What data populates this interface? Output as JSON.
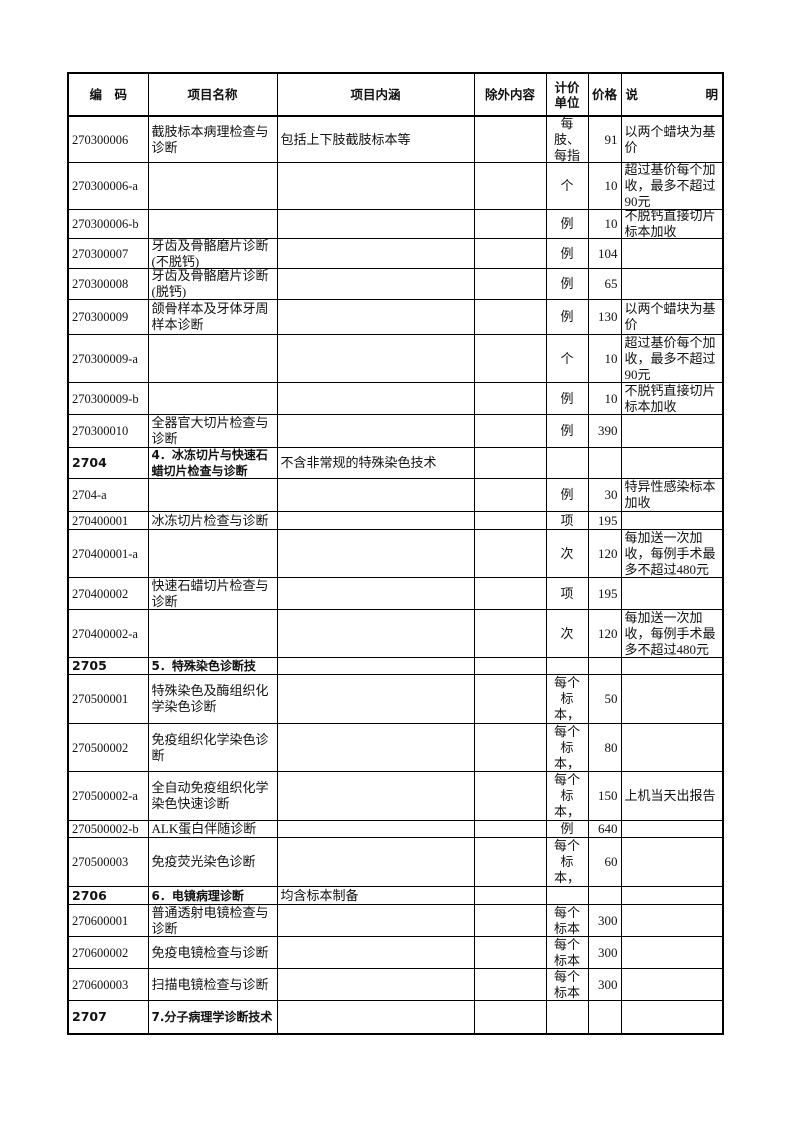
{
  "header": {
    "code": "编　码",
    "name": "项目名称",
    "content": "项目内涵",
    "exclude": "除外内容",
    "unit": "计价单位",
    "price": "价格",
    "note": "说　　明"
  },
  "rows": [
    {
      "code": "270300006",
      "name": "截肢标本病理检查与诊断",
      "content": "包括上下肢截肢标本等",
      "exclude": "",
      "unit": "每肢、每指",
      "price": "91",
      "note": "以两个蜡块为基价",
      "bold": false
    },
    {
      "code": "270300006-a",
      "name": "",
      "content": "",
      "exclude": "",
      "unit": "个",
      "price": "10",
      "note": "超过基价每个加收，最多不超过90元",
      "bold": false
    },
    {
      "code": "270300006-b",
      "name": "",
      "content": "",
      "exclude": "",
      "unit": "例",
      "price": "10",
      "note": "不脱钙直接切片标本加收",
      "bold": false
    },
    {
      "code": "270300007",
      "name": "牙齿及骨骼磨片诊断(不脱钙)",
      "content": "",
      "exclude": "",
      "unit": "例",
      "price": "104",
      "note": "",
      "bold": false
    },
    {
      "code": "270300008",
      "name": "牙齿及骨骼磨片诊断(脱钙)",
      "content": "",
      "exclude": "",
      "unit": "例",
      "price": "65",
      "note": "",
      "bold": false
    },
    {
      "code": "270300009",
      "name": "颌骨样本及牙体牙周样本诊断",
      "content": "",
      "exclude": "",
      "unit": "例",
      "price": "130",
      "note": "以两个蜡块为基价",
      "bold": false
    },
    {
      "code": "270300009-a",
      "name": "",
      "content": "",
      "exclude": "",
      "unit": "个",
      "price": "10",
      "note": "超过基价每个加收，最多不超过90元",
      "bold": false
    },
    {
      "code": "270300009-b",
      "name": "",
      "content": "",
      "exclude": "",
      "unit": "例",
      "price": "10",
      "note": "不脱钙直接切片标本加收",
      "bold": false
    },
    {
      "code": "270300010",
      "name": "全器官大切片检查与诊断",
      "content": "",
      "exclude": "",
      "unit": "例",
      "price": "390",
      "note": "",
      "bold": false
    },
    {
      "code": "2704",
      "name": "4．冰冻切片与快速石蜡切片检查与诊断",
      "content": "不含非常规的特殊染色技术",
      "exclude": "",
      "unit": "",
      "price": "",
      "note": "",
      "bold": true
    },
    {
      "code": "2704-a",
      "name": "",
      "content": "",
      "exclude": "",
      "unit": "例",
      "price": "30",
      "note": "特异性感染标本加收",
      "bold": false
    },
    {
      "code": "270400001",
      "name": "冰冻切片检查与诊断",
      "content": "",
      "exclude": "",
      "unit": "项",
      "price": "195",
      "note": "",
      "bold": false
    },
    {
      "code": "270400001-a",
      "name": "",
      "content": "",
      "exclude": "",
      "unit": "次",
      "price": "120",
      "note": "每加送一次加收，每例手术最多不超过480元",
      "bold": false
    },
    {
      "code": "270400002",
      "name": "快速石蜡切片检查与诊断",
      "content": "",
      "exclude": "",
      "unit": "项",
      "price": "195",
      "note": "",
      "bold": false
    },
    {
      "code": "270400002-a",
      "name": "",
      "content": "",
      "exclude": "",
      "unit": "次",
      "price": "120",
      "note": "每加送一次加收，每例手术最多不超过480元",
      "bold": false
    },
    {
      "code": "2705",
      "name": "5．特殊染色诊断技",
      "content": "",
      "exclude": "",
      "unit": "",
      "price": "",
      "note": "",
      "bold": true
    },
    {
      "code": "270500001",
      "name": "特殊染色及酶组织化学染色诊断",
      "content": "",
      "exclude": "",
      "unit": "每个标本，",
      "price": "50",
      "note": "",
      "bold": false
    },
    {
      "code": "270500002",
      "name": "免疫组织化学染色诊断",
      "content": "",
      "exclude": "",
      "unit": "每个标本，",
      "price": "80",
      "note": "",
      "bold": false
    },
    {
      "code": "270500002-a",
      "name": "全自动免疫组织化学染色快速诊断",
      "content": "",
      "exclude": "",
      "unit": "每个标本，",
      "price": "150",
      "note": "上机当天出报告",
      "bold": false
    },
    {
      "code": "270500002-b",
      "name": "ALK蛋白伴随诊断",
      "content": "",
      "exclude": "",
      "unit": "例",
      "price": "640",
      "note": "",
      "bold": false
    },
    {
      "code": "270500003",
      "name": "免疫荧光染色诊断",
      "content": "",
      "exclude": "",
      "unit": "每个标本，",
      "price": "60",
      "note": "",
      "bold": false
    },
    {
      "code": "2706",
      "name": "6．电镜病理诊断",
      "content": "均含标本制备",
      "exclude": "",
      "unit": "",
      "price": "",
      "note": "",
      "bold": true
    },
    {
      "code": "270600001",
      "name": "普通透射电镜检查与诊断",
      "content": "",
      "exclude": "",
      "unit": "每个标本",
      "price": "300",
      "note": "",
      "bold": false
    },
    {
      "code": "270600002",
      "name": "免疫电镜检查与诊断",
      "content": "",
      "exclude": "",
      "unit": "每个标本",
      "price": "300",
      "note": "",
      "bold": false
    },
    {
      "code": "270600003",
      "name": "扫描电镜检查与诊断",
      "content": "",
      "exclude": "",
      "unit": "每个标本",
      "price": "300",
      "note": "",
      "bold": false
    },
    {
      "code": "2707",
      "name": "7.分子病理学诊断技术",
      "content": "",
      "exclude": "",
      "unit": "",
      "price": "",
      "note": "",
      "bold": true
    }
  ]
}
